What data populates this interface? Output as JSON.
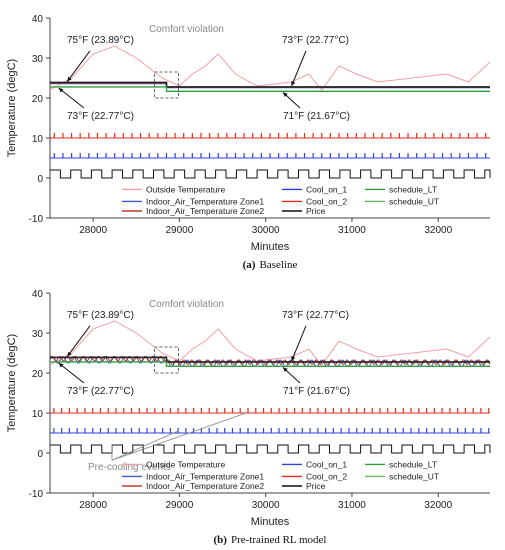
{
  "colors": {
    "outside": "#f2a0a8",
    "zone1": "#3b5bd6",
    "zone2": "#c0392b",
    "cool1": "#2f3fe0",
    "cool2": "#e02a1a",
    "schedule_lt": "#2e9e3a",
    "schedule_ut": "#66b866",
    "price": "#111111",
    "annotation": "#888888"
  },
  "chart_data": [
    {
      "type": "line",
      "caption_label": "(a)",
      "caption_text": "Baseline",
      "ylabel": "Temperature (degC)",
      "xlabel": "Minutes",
      "xlim": [
        27500,
        32600
      ],
      "ylim": [
        -10,
        40
      ],
      "xticks": [
        28000,
        29000,
        30000,
        31000,
        32000
      ],
      "yticks": [
        -10,
        0,
        10,
        20,
        30,
        40
      ],
      "grid": false,
      "legend_position": "lower-center",
      "legend": [
        "Outside Temperature",
        "Cool_on_1",
        "schedule_LT",
        "Indoor_Air_Temperature Zone1",
        "Cool_on_2",
        "schedule_UT",
        "Indoor_Air_Temperature Zone2",
        "Price"
      ],
      "annotations": {
        "comfort": "Comfort violation",
        "upper_left": "75°F (23.89°C)",
        "lower_left": "73°F (22.77°C)",
        "upper_right": "73°F (22.77°C)",
        "lower_right": "71°F (21.67°C)"
      },
      "series": [
        {
          "name": "Outside Temperature",
          "x": [
            27500,
            27750,
            28000,
            28250,
            28500,
            28800,
            29000,
            29150,
            29300,
            29450,
            29650,
            29900,
            30300,
            30500,
            30650,
            30850,
            31050,
            31300,
            31700,
            32100,
            32350,
            32600
          ],
          "y": [
            22,
            25,
            31,
            33,
            30,
            25,
            23,
            26,
            28,
            31,
            26,
            23,
            24,
            26,
            22,
            28,
            26,
            24,
            25,
            26,
            24,
            29
          ]
        },
        {
          "name": "schedule_UT",
          "x": [
            27500,
            28850,
            28850,
            32600
          ],
          "y": [
            23.89,
            23.89,
            22.77,
            22.77
          ]
        },
        {
          "name": "schedule_LT",
          "x": [
            27500,
            28850,
            28850,
            32600
          ],
          "y": [
            22.77,
            22.77,
            21.67,
            21.67
          ]
        },
        {
          "name": "Indoor_Air_Temperature Zone1",
          "x": [
            27500,
            28850,
            28850,
            32600
          ],
          "y": [
            23.6,
            23.6,
            22.6,
            22.6
          ]
        },
        {
          "name": "Indoor_Air_Temperature Zone2",
          "x": [
            27500,
            28850,
            28850,
            32600
          ],
          "y": [
            23.7,
            23.7,
            22.7,
            22.7
          ]
        },
        {
          "name": "Cool_on_2",
          "baseline": 10,
          "pulse_top": 11,
          "start": 27500,
          "end": 32600,
          "period": 100
        },
        {
          "name": "Cool_on_1",
          "baseline": 5,
          "pulse_top": 6,
          "start": 27500,
          "end": 32600,
          "period": 100
        },
        {
          "name": "Price",
          "low": 0,
          "high": 2,
          "start": 27500,
          "end": 32600,
          "period": 240,
          "duty": 0.5
        }
      ]
    },
    {
      "type": "line",
      "caption_label": "(b)",
      "caption_text": "Pre-trained RL model",
      "ylabel": "Temperature (degC)",
      "xlabel": "Minutes",
      "xlim": [
        27500,
        32600
      ],
      "ylim": [
        -10,
        40
      ],
      "xticks": [
        28000,
        29000,
        30000,
        31000,
        32000
      ],
      "yticks": [
        -10,
        0,
        10,
        20,
        30,
        40
      ],
      "grid": false,
      "legend_position": "lower-center",
      "legend": [
        "Outside Temperature",
        "Cool_on_1",
        "schedule_LT",
        "Indoor_Air_Temperature Zone1",
        "Cool_on_2",
        "schedule_UT",
        "Indoor_Air_Temperature Zone2",
        "Price"
      ],
      "annotations": {
        "comfort": "Comfort violation",
        "upper_left": "75°F (23.89°C)",
        "lower_left": "73°F (22.77°C)",
        "upper_right": "73°F (22.77°C)",
        "lower_right": "71°F (21.67°C)",
        "precooling": "Pre-cooling events"
      },
      "series": [
        {
          "name": "Outside Temperature",
          "x": [
            27500,
            27750,
            28000,
            28250,
            28500,
            28800,
            29000,
            29150,
            29300,
            29450,
            29650,
            29900,
            30300,
            30500,
            30650,
            30850,
            31050,
            31300,
            31700,
            32100,
            32350,
            32600
          ],
          "y": [
            22,
            25,
            31,
            33,
            30,
            25,
            23,
            26,
            28,
            31,
            26,
            23,
            24,
            26,
            22,
            28,
            26,
            24,
            25,
            26,
            24,
            29
          ]
        },
        {
          "name": "schedule_UT",
          "x": [
            27500,
            28850,
            28850,
            32600
          ],
          "y": [
            23.89,
            23.89,
            22.77,
            22.77
          ]
        },
        {
          "name": "schedule_LT",
          "x": [
            27500,
            28850,
            28850,
            32600
          ],
          "y": [
            22.77,
            22.77,
            21.67,
            21.67
          ]
        },
        {
          "name": "Indoor_Air_Temperature Zone1",
          "start": 27500,
          "end": 32600,
          "level_before": 23.3,
          "level_after": 22.4,
          "switch_x": 28850,
          "wiggle": 0.9,
          "period": 120
        },
        {
          "name": "Indoor_Air_Temperature Zone2",
          "start": 27500,
          "end": 32600,
          "level_before": 23.6,
          "level_after": 22.7,
          "switch_x": 28850,
          "wiggle": 0.6,
          "period": 90
        },
        {
          "name": "Cool_on_2",
          "baseline": 10,
          "pulse_top": 11,
          "start": 27500,
          "end": 32600,
          "period": 90
        },
        {
          "name": "Cool_on_1",
          "baseline": 5,
          "pulse_top": 6,
          "start": 27500,
          "end": 32600,
          "period": 90
        },
        {
          "name": "Price",
          "low": 0,
          "high": 2,
          "start": 27500,
          "end": 32600,
          "period": 240,
          "duty": 0.5
        }
      ]
    }
  ]
}
